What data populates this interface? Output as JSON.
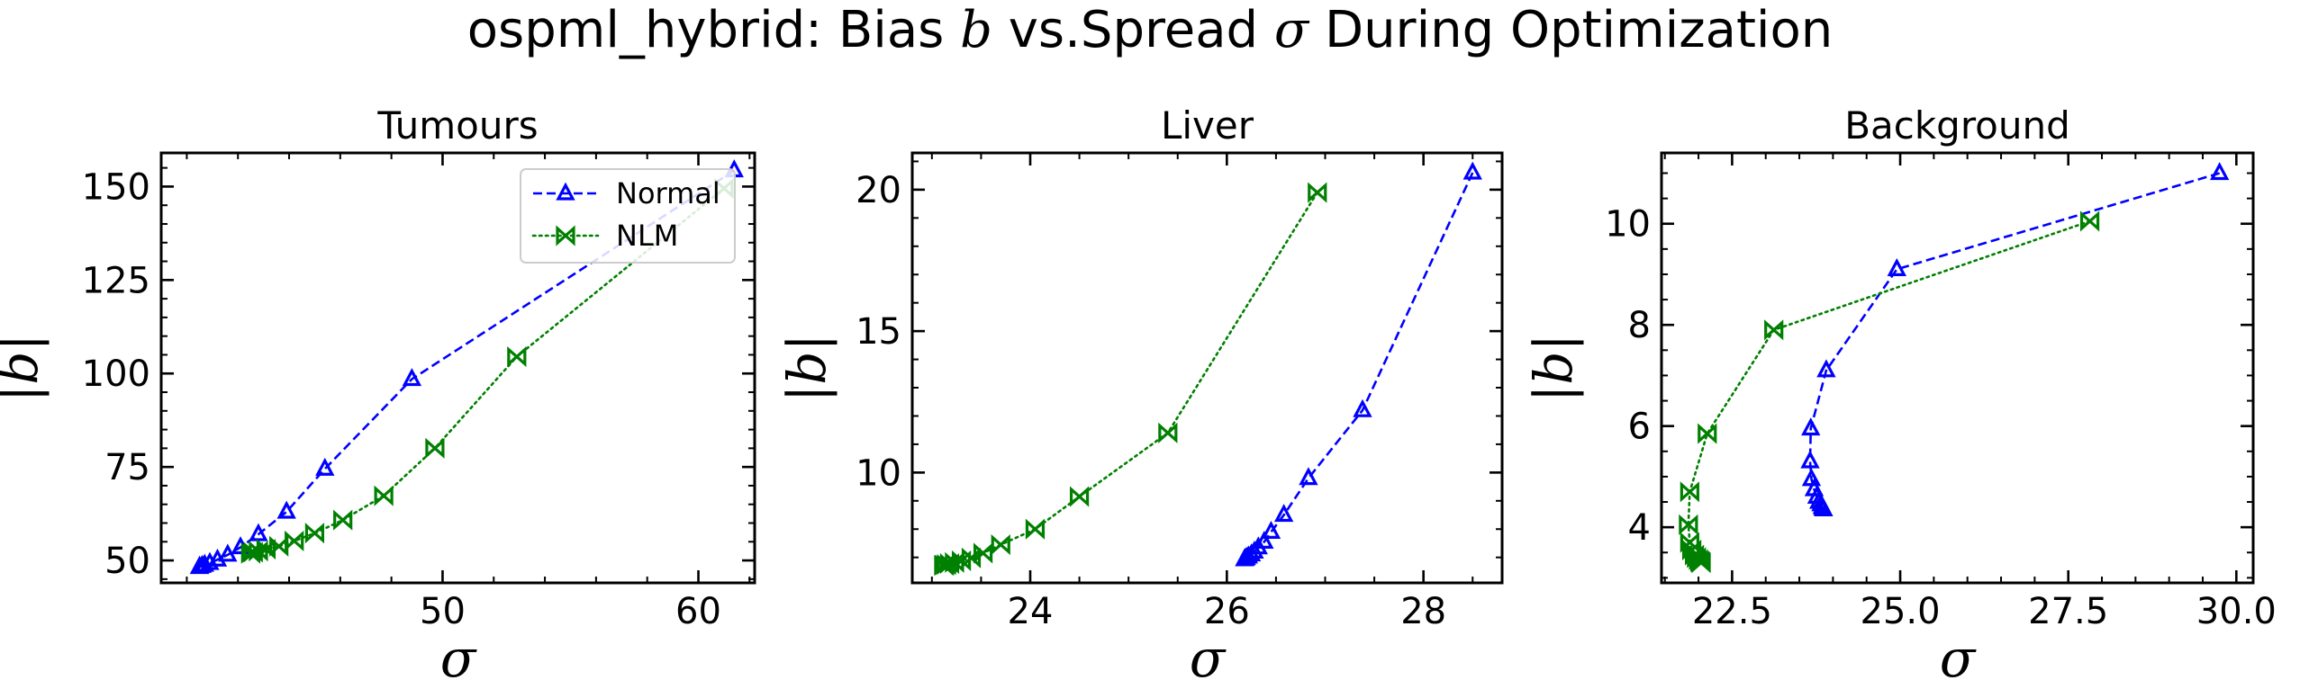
{
  "figure": {
    "title_prefix": "ospml_hybrid: Bias ",
    "title_b": "b",
    "title_mid": " vs.Spread ",
    "title_sigma": "σ",
    "title_suffix": " During Optimization"
  },
  "legend": {
    "normal": "Normal",
    "nlm": "NLM"
  },
  "colors": {
    "normal": "#0000ff",
    "nlm": "#008000"
  },
  "chart_data": [
    {
      "type": "line",
      "title": "Tumours",
      "xlabel": "σ",
      "ylabel": "|b|",
      "xlim": [
        39.0,
        62.2
      ],
      "ylim": [
        44.0,
        159.0
      ],
      "xticks": [
        {
          "v": 50,
          "t": "50"
        },
        {
          "v": 60,
          "t": "60"
        }
      ],
      "yticks": [
        {
          "v": 50,
          "t": "50"
        },
        {
          "v": 75,
          "t": "75"
        },
        {
          "v": 100,
          "t": "100"
        },
        {
          "v": 125,
          "t": "125"
        },
        {
          "v": 150,
          "t": "150"
        }
      ],
      "xminor_step": 2,
      "yminor_step": 5,
      "legend": "top-right",
      "series": [
        {
          "name": "Normal",
          "color": "#0000ff",
          "dash": "dashed",
          "marker": "triangle",
          "x": [
            61.4,
            48.8,
            45.4,
            43.9,
            42.8,
            42.1,
            41.6,
            41.2,
            40.9,
            40.7,
            40.6,
            40.5,
            40.5
          ],
          "y": [
            154.3,
            98.5,
            74.5,
            63.0,
            57.0,
            53.5,
            51.5,
            50.2,
            49.3,
            48.8,
            48.5,
            48.3,
            48.2
          ]
        },
        {
          "name": "NLM",
          "color": "#008000",
          "dash": "dotted",
          "marker": "bowtie",
          "x": [
            61.0,
            52.9,
            49.7,
            47.7,
            46.1,
            45.0,
            44.2,
            43.6,
            43.1,
            42.8,
            42.6,
            42.5,
            42.5
          ],
          "y": [
            149.5,
            104.5,
            80.0,
            67.3,
            60.8,
            57.3,
            55.2,
            53.8,
            53.0,
            52.5,
            52.2,
            52.0,
            51.9
          ]
        }
      ]
    },
    {
      "type": "line",
      "title": "Liver",
      "xlabel": "σ",
      "ylabel": "|b|",
      "xlim": [
        22.8,
        28.8
      ],
      "ylim": [
        6.1,
        21.3
      ],
      "xticks": [
        {
          "v": 24,
          "t": "24"
        },
        {
          "v": 26,
          "t": "26"
        },
        {
          "v": 28,
          "t": "28"
        }
      ],
      "yticks": [
        {
          "v": 10,
          "t": "10"
        },
        {
          "v": 15,
          "t": "15"
        },
        {
          "v": 20,
          "t": "20"
        }
      ],
      "xminor_step": 0.5,
      "yminor_step": 1,
      "series": [
        {
          "name": "Normal",
          "color": "#0000ff",
          "dash": "dashed",
          "marker": "triangle",
          "x": [
            28.5,
            27.38,
            26.83,
            26.58,
            26.45,
            26.38,
            26.32,
            26.28,
            26.25,
            26.22,
            26.2,
            26.19,
            26.18
          ],
          "y": [
            20.6,
            12.2,
            9.8,
            8.5,
            7.9,
            7.55,
            7.35,
            7.2,
            7.1,
            7.03,
            6.98,
            6.95,
            6.93
          ]
        },
        {
          "name": "NLM",
          "color": "#008000",
          "dash": "dotted",
          "marker": "bowtie",
          "x": [
            26.92,
            25.4,
            24.5,
            24.05,
            23.7,
            23.52,
            23.4,
            23.3,
            23.23,
            23.18,
            23.15,
            23.13,
            23.12
          ],
          "y": [
            19.9,
            11.4,
            9.15,
            8.0,
            7.45,
            7.15,
            6.98,
            6.88,
            6.82,
            6.78,
            6.75,
            6.73,
            6.72
          ]
        }
      ]
    },
    {
      "type": "line",
      "title": "Background",
      "xlabel": "σ",
      "ylabel": "|b|",
      "xlim": [
        21.45,
        30.25
      ],
      "ylim": [
        2.9,
        11.4
      ],
      "xticks": [
        {
          "v": 22.5,
          "t": "22.5"
        },
        {
          "v": 25,
          "t": "25.0"
        },
        {
          "v": 27.5,
          "t": "27.5"
        },
        {
          "v": 30,
          "t": "30.0"
        }
      ],
      "yticks": [
        {
          "v": 4,
          "t": "4"
        },
        {
          "v": 6,
          "t": "6"
        },
        {
          "v": 8,
          "t": "8"
        },
        {
          "v": 10,
          "t": "10"
        }
      ],
      "xminor_step": 0.5,
      "yminor_step": 0.5,
      "series": [
        {
          "name": "Normal",
          "color": "#0000ff",
          "dash": "dashed",
          "marker": "triangle",
          "x": [
            29.75,
            24.95,
            23.9,
            23.67,
            23.66,
            23.68,
            23.72,
            23.76,
            23.79,
            23.82,
            23.84,
            23.85,
            23.86
          ],
          "y": [
            11.0,
            9.1,
            7.1,
            5.95,
            5.3,
            4.95,
            4.75,
            4.6,
            4.5,
            4.45,
            4.4,
            4.37,
            4.35
          ]
        },
        {
          "name": "NLM",
          "color": "#008000",
          "dash": "dotted",
          "marker": "bowtie",
          "x": [
            27.82,
            23.12,
            22.13,
            21.87,
            21.85,
            21.87,
            21.9,
            21.94,
            21.97,
            22.0,
            22.02,
            22.03,
            22.04
          ],
          "y": [
            10.05,
            7.9,
            5.85,
            4.7,
            4.05,
            3.7,
            3.55,
            3.45,
            3.4,
            3.36,
            3.33,
            3.31,
            3.3
          ]
        }
      ]
    }
  ]
}
